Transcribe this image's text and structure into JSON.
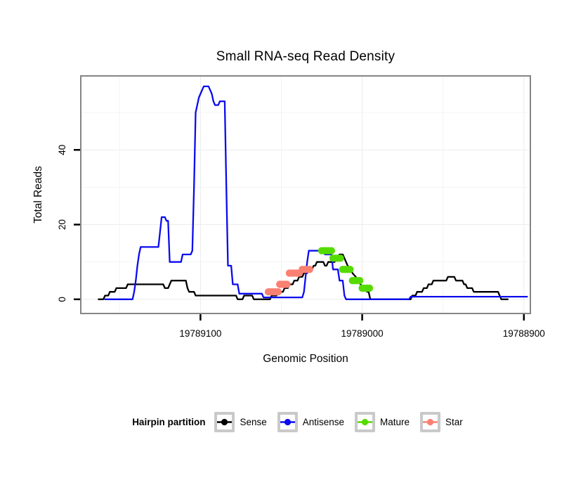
{
  "title": "Small RNA-seq Read Density",
  "x_axis": {
    "label": "Genomic Position",
    "ticks": [
      {
        "value": 19789100,
        "label": "19789100"
      },
      {
        "value": 19789000,
        "label": "19789000"
      },
      {
        "value": 19788900,
        "label": "19788900"
      }
    ]
  },
  "y_axis": {
    "label": "Total Reads",
    "ticks": [
      {
        "value": 0,
        "label": "0"
      },
      {
        "value": 20,
        "label": "20"
      },
      {
        "value": 40,
        "label": "40"
      }
    ]
  },
  "legend": {
    "title": "Hairpin partition",
    "entries": [
      {
        "label": "Sense",
        "color": "#000000"
      },
      {
        "label": "Antisense",
        "color": "#0b0bee"
      },
      {
        "label": "Mature",
        "color": "#55db00"
      },
      {
        "label": "Star",
        "color": "#fa8072"
      }
    ]
  },
  "colors": {
    "background": "#ffffff",
    "panel_background": "#ffffff",
    "panel_border": "#858585",
    "gridline_major": "#ececec",
    "gridline_minor": "#f3f3f3",
    "tick": "#000000",
    "text": "#000000",
    "sense": "#000000",
    "antisense": "#0b0bee",
    "mature": "#55db00",
    "star": "#fa8072"
  },
  "chart_data": {
    "type": "line",
    "title": "Small RNA-seq Read Density",
    "xlabel": "Genomic Position",
    "ylabel": "Total Reads",
    "x_reversed": true,
    "xlim": [
      19789174,
      19788896
    ],
    "ylim": [
      -3.8,
      59.8
    ],
    "x_ticks": [
      19789100,
      19789000,
      19788900
    ],
    "y_ticks": [
      0,
      20,
      40
    ],
    "x_minor_gridlines": [
      19789150,
      19789050,
      19788950
    ],
    "y_minor_gridlines": [
      10,
      30,
      50
    ],
    "grid": "minor-only-faint",
    "legend_position": "bottom",
    "series": [
      {
        "name": "Sense",
        "kind": "step-line",
        "color": "#000000",
        "points": [
          [
            19789163,
            0
          ],
          [
            19789160,
            0
          ],
          [
            19789159,
            1
          ],
          [
            19789157,
            1
          ],
          [
            19789156,
            2
          ],
          [
            19789153,
            2
          ],
          [
            19789152,
            3
          ],
          [
            19789146,
            3
          ],
          [
            19789145,
            4
          ],
          [
            19789123,
            4
          ],
          [
            19789122,
            3
          ],
          [
            19789120,
            3
          ],
          [
            19789119,
            4
          ],
          [
            19789118,
            5
          ],
          [
            19789109,
            5
          ],
          [
            19789108,
            3
          ],
          [
            19789107,
            2
          ],
          [
            19789104,
            2
          ],
          [
            19789103,
            1
          ],
          [
            19789078,
            1
          ],
          [
            19789077,
            0
          ],
          [
            19789074,
            0
          ],
          [
            19789073,
            1
          ],
          [
            19789068,
            1
          ],
          [
            19789067,
            0
          ],
          [
            19789057,
            0
          ],
          [
            19789056,
            1
          ],
          [
            19789053,
            1
          ],
          [
            19789052,
            2
          ],
          [
            19789049,
            2
          ],
          [
            19789048,
            3
          ],
          [
            19789046,
            3
          ],
          [
            19789045,
            4
          ],
          [
            19789043,
            4
          ],
          [
            19789042,
            5
          ],
          [
            19789040,
            5
          ],
          [
            19789039,
            6
          ],
          [
            19789037,
            6
          ],
          [
            19789036,
            7
          ],
          [
            19789034,
            7
          ],
          [
            19789033,
            8
          ],
          [
            19789031,
            8
          ],
          [
            19789030,
            9
          ],
          [
            19789029,
            9
          ],
          [
            19789028,
            10
          ],
          [
            19789024,
            10
          ],
          [
            19789023,
            9
          ],
          [
            19789022,
            9
          ],
          [
            19789021,
            10
          ],
          [
            19789017,
            10
          ],
          [
            19789016,
            11
          ],
          [
            19789015,
            11
          ],
          [
            19789014,
            12
          ],
          [
            19789012,
            12
          ],
          [
            19789011,
            11
          ],
          [
            19789010,
            10
          ],
          [
            19789009,
            9
          ],
          [
            19789007,
            8
          ],
          [
            19789006,
            7
          ],
          [
            19789004,
            6
          ],
          [
            19789003,
            5
          ],
          [
            19789001,
            4
          ],
          [
            19789000,
            3
          ],
          [
            19788998,
            3
          ],
          [
            19788997,
            2
          ],
          [
            19788996,
            2
          ],
          [
            19788995,
            0
          ],
          [
            19788970,
            0
          ],
          [
            19788969,
            1
          ],
          [
            19788967,
            1
          ],
          [
            19788966,
            2
          ],
          [
            19788963,
            2
          ],
          [
            19788962,
            3
          ],
          [
            19788960,
            3
          ],
          [
            19788959,
            4
          ],
          [
            19788957,
            4
          ],
          [
            19788956,
            5
          ],
          [
            19788948,
            5
          ],
          [
            19788947,
            6
          ],
          [
            19788943,
            6
          ],
          [
            19788942,
            5
          ],
          [
            19788938,
            5
          ],
          [
            19788937,
            4
          ],
          [
            19788936,
            4
          ],
          [
            19788935,
            3
          ],
          [
            19788932,
            3
          ],
          [
            19788931,
            2
          ],
          [
            19788916,
            2
          ],
          [
            19788914,
            0
          ],
          [
            19788910,
            0
          ]
        ]
      },
      {
        "name": "Antisense",
        "kind": "step-line",
        "color": "#0b0bee",
        "points": [
          [
            19789159,
            0
          ],
          [
            19789142,
            0
          ],
          [
            19789141,
            2
          ],
          [
            19789140,
            5
          ],
          [
            19789139,
            9
          ],
          [
            19789138,
            12
          ],
          [
            19789137,
            14
          ],
          [
            19789126,
            14
          ],
          [
            19789125,
            18
          ],
          [
            19789124,
            22
          ],
          [
            19789122,
            22
          ],
          [
            19789121,
            21
          ],
          [
            19789120,
            21
          ],
          [
            19789119,
            10
          ],
          [
            19789112,
            10
          ],
          [
            19789111,
            12
          ],
          [
            19789106,
            12
          ],
          [
            19789105,
            13
          ],
          [
            19789104,
            30
          ],
          [
            19789103,
            50
          ],
          [
            19789102,
            52
          ],
          [
            19789101,
            54
          ],
          [
            19789100,
            55
          ],
          [
            19789098,
            57
          ],
          [
            19789095,
            57
          ],
          [
            19789094,
            56
          ],
          [
            19789093,
            55
          ],
          [
            19789092,
            53
          ],
          [
            19789091,
            52
          ],
          [
            19789089,
            52
          ],
          [
            19789088,
            53
          ],
          [
            19789085,
            53
          ],
          [
            19789084,
            30
          ],
          [
            19789083,
            9
          ],
          [
            19789081,
            9
          ],
          [
            19789080,
            4
          ],
          [
            19789077,
            4
          ],
          [
            19789076,
            1.5
          ],
          [
            19789062,
            1.5
          ],
          [
            19789061,
            0.5
          ],
          [
            19789037,
            0.5
          ],
          [
            19789036,
            2
          ],
          [
            19789035,
            6
          ],
          [
            19789034,
            10
          ],
          [
            19789033,
            13
          ],
          [
            19789024,
            13
          ],
          [
            19789023,
            12
          ],
          [
            19789019,
            12
          ],
          [
            19789018,
            8
          ],
          [
            19789015,
            8
          ],
          [
            19789014,
            5
          ],
          [
            19789012,
            5
          ],
          [
            19789011,
            1
          ],
          [
            19789010,
            0
          ],
          [
            19788971,
            0
          ],
          [
            19788970,
            0.7
          ],
          [
            19788898,
            0.7
          ]
        ]
      },
      {
        "name": "Mature",
        "kind": "points",
        "color": "#55db00",
        "points": [
          [
            19789025,
            13
          ],
          [
            19789023.5,
            13
          ],
          [
            19789022,
            13
          ],
          [
            19789020.5,
            13
          ],
          [
            19789019,
            13
          ],
          [
            19789018,
            11
          ],
          [
            19789016.5,
            11
          ],
          [
            19789015,
            11
          ],
          [
            19789013.5,
            11
          ],
          [
            19789012,
            8
          ],
          [
            19789010.5,
            8
          ],
          [
            19789009,
            8
          ],
          [
            19789007.5,
            8
          ],
          [
            19789006,
            5
          ],
          [
            19789004.5,
            5
          ],
          [
            19789003,
            5
          ],
          [
            19789001.5,
            5
          ],
          [
            19789000,
            3
          ],
          [
            19788998.5,
            3
          ],
          [
            19788997,
            3
          ],
          [
            19788995.5,
            3
          ]
        ]
      },
      {
        "name": "Star",
        "kind": "points",
        "color": "#fa8072",
        "points": [
          [
            19789058,
            2
          ],
          [
            19789056.5,
            2
          ],
          [
            19789055,
            2
          ],
          [
            19789053.5,
            2
          ],
          [
            19789052,
            2
          ],
          [
            19789051,
            4
          ],
          [
            19789049.5,
            4
          ],
          [
            19789048,
            4
          ],
          [
            19789046.5,
            4
          ],
          [
            19789045,
            7
          ],
          [
            19789043.5,
            7
          ],
          [
            19789042,
            7
          ],
          [
            19789040.5,
            7
          ],
          [
            19789039,
            7
          ],
          [
            19789037,
            8
          ],
          [
            19789035.5,
            8
          ],
          [
            19789034,
            8
          ],
          [
            19789032.5,
            8
          ]
        ]
      }
    ]
  }
}
